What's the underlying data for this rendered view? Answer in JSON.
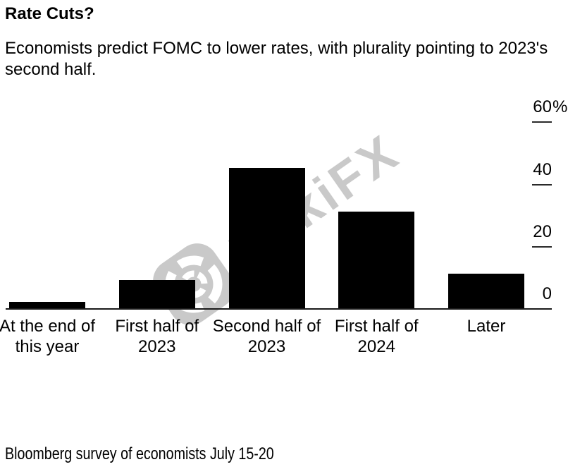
{
  "header": {
    "title": "Rate Cuts?",
    "subtitle": "Economists predict FOMC to lower rates, with plurality pointing to 2023's second half."
  },
  "watermark": {
    "text": "WikiFX",
    "icon": "aperture-logo-icon",
    "color": "#c9c9c9"
  },
  "footer": {
    "source_note": "Bloomberg survey of economists July 15-20"
  },
  "chart_data": {
    "type": "bar",
    "title": "Rate Cuts?",
    "categories": [
      "At the end of\nthis year",
      "First half of\n2023",
      "Second half of\n2023",
      "First half of\n2024",
      "Later"
    ],
    "values": [
      2,
      9,
      45,
      31,
      11
    ],
    "unit": "%",
    "xlabel": "",
    "ylabel": "",
    "ylim": [
      0,
      60
    ],
    "y_ticks": [
      60,
      40,
      20,
      0
    ],
    "y_tick_suffix": "%",
    "y_tick_suffix_on": 60,
    "axis_side": "right",
    "grid": false,
    "bar_color": "#000000",
    "axis_color": "#1a1a1a"
  }
}
